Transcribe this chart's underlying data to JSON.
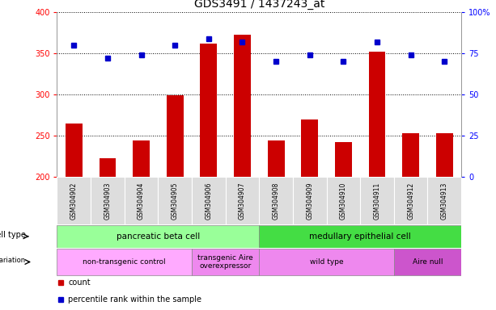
{
  "title": "GDS3491 / 1437243_at",
  "samples": [
    "GSM304902",
    "GSM304903",
    "GSM304904",
    "GSM304905",
    "GSM304906",
    "GSM304907",
    "GSM304908",
    "GSM304909",
    "GSM304910",
    "GSM304911",
    "GSM304912",
    "GSM304913"
  ],
  "counts": [
    265,
    222,
    244,
    299,
    362,
    373,
    244,
    270,
    242,
    352,
    253,
    253
  ],
  "percentile_ranks": [
    80,
    72,
    74,
    80,
    84,
    82,
    70,
    74,
    70,
    82,
    74,
    70
  ],
  "ylim_left": [
    200,
    400
  ],
  "ylim_right": [
    0,
    100
  ],
  "yticks_left": [
    200,
    250,
    300,
    350,
    400
  ],
  "yticks_right": [
    0,
    25,
    50,
    75,
    100
  ],
  "bar_color": "#cc0000",
  "dot_color": "#0000cc",
  "cell_type_groups": [
    {
      "label": "pancreatic beta cell",
      "start": 0,
      "end": 5,
      "color": "#99ff99"
    },
    {
      "label": "medullary epithelial cell",
      "start": 6,
      "end": 11,
      "color": "#44dd44"
    }
  ],
  "genotype_groups": [
    {
      "label": "non-transgenic control",
      "start": 0,
      "end": 3,
      "color": "#ffaaff"
    },
    {
      "label": "transgenic Aire\noverexpressor",
      "start": 4,
      "end": 5,
      "color": "#ee88ee"
    },
    {
      "label": "wild type",
      "start": 6,
      "end": 9,
      "color": "#ee88ee"
    },
    {
      "label": "Aire null",
      "start": 10,
      "end": 11,
      "color": "#cc55cc"
    }
  ],
  "legend_count_color": "#cc0000",
  "legend_dot_color": "#0000cc"
}
